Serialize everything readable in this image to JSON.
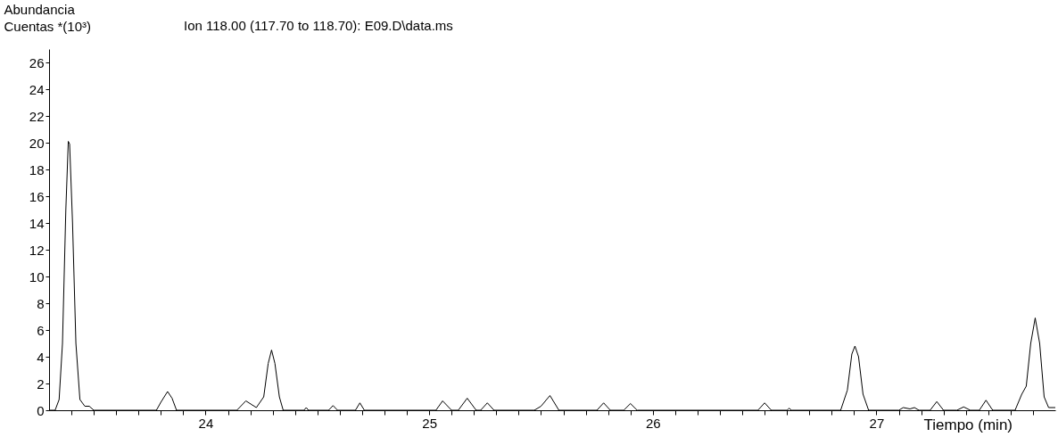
{
  "chart_data": {
    "type": "line",
    "title": "Ion 118.00 (117.70 to 118.70): E09.D\\data.ms",
    "ylabel": "Abundancia\nCuentas *(10³)",
    "xlabel": "Tiempo  (min)",
    "x": [
      23.3,
      23.327,
      23.345,
      23.36,
      23.375,
      23.386,
      23.392,
      23.405,
      23.42,
      23.438,
      23.46,
      23.48,
      23.5,
      23.78,
      23.8,
      23.83,
      23.85,
      23.87,
      24.14,
      24.18,
      24.227,
      24.26,
      24.28,
      24.295,
      24.31,
      24.33,
      24.347,
      24.44,
      24.45,
      24.46,
      24.55,
      24.57,
      24.59,
      24.67,
      24.69,
      24.71,
      25.03,
      25.06,
      25.1,
      25.13,
      25.17,
      25.21,
      25.23,
      25.26,
      25.29,
      25.47,
      25.5,
      25.54,
      25.58,
      25.75,
      25.78,
      25.81,
      25.87,
      25.9,
      25.93,
      26.47,
      26.5,
      26.53,
      26.6,
      26.61,
      26.62,
      26.84,
      26.87,
      26.89,
      26.904,
      26.92,
      26.94,
      26.965,
      27.1,
      27.12,
      27.15,
      27.17,
      27.19,
      27.24,
      27.27,
      27.3,
      27.36,
      27.39,
      27.42,
      27.46,
      27.49,
      27.52,
      27.62,
      27.65,
      27.67,
      27.69,
      27.71,
      27.73,
      27.75,
      27.77,
      27.8
    ],
    "series": [
      {
        "color": "#000000",
        "values": [
          0,
          0,
          0.8,
          5,
          15,
          20.1,
          19.9,
          14,
          5,
          0.8,
          0.3,
          0.3,
          0,
          0,
          0.6,
          1.4,
          0.9,
          0,
          0,
          0.7,
          0.2,
          1,
          3.5,
          4.5,
          3.5,
          1,
          0,
          0,
          0.2,
          0,
          0,
          0.35,
          0,
          0,
          0.55,
          0,
          0,
          0.7,
          0,
          0,
          0.9,
          0,
          0,
          0.55,
          0,
          0,
          0.3,
          1.1,
          0,
          0,
          0.55,
          0,
          0,
          0.5,
          0,
          0,
          0.55,
          0,
          0,
          0.15,
          0,
          0,
          1.5,
          4.2,
          4.8,
          4,
          1.2,
          0,
          0,
          0.2,
          0.1,
          0.2,
          0,
          0,
          0.65,
          0,
          0,
          0.25,
          0,
          0,
          0.75,
          0,
          0,
          1.2,
          1.8,
          5,
          6.9,
          5,
          1,
          0.2,
          0.2
        ]
      }
    ],
    "xlim": [
      23.3,
      27.8
    ],
    "ylim": [
      0,
      27
    ],
    "xticks": [
      {
        "value": 23.4,
        "label": null
      },
      {
        "value": 23.5,
        "label": null
      },
      {
        "value": 23.6,
        "label": null
      },
      {
        "value": 23.7,
        "label": null
      },
      {
        "value": 23.8,
        "label": null
      },
      {
        "value": 23.9,
        "label": null
      },
      24,
      {
        "value": 24.1,
        "label": null
      },
      {
        "value": 24.2,
        "label": null
      },
      {
        "value": 24.3,
        "label": null
      },
      {
        "value": 24.4,
        "label": null
      },
      {
        "value": 24.5,
        "label": null
      },
      {
        "value": 24.6,
        "label": null
      },
      {
        "value": 24.7,
        "label": null
      },
      {
        "value": 24.8,
        "label": null
      },
      {
        "value": 24.9,
        "label": null
      },
      25,
      {
        "value": 25.1,
        "label": null
      },
      {
        "value": 25.2,
        "label": null
      },
      {
        "value": 25.3,
        "label": null
      },
      {
        "value": 25.4,
        "label": null
      },
      {
        "value": 25.5,
        "label": null
      },
      {
        "value": 25.6,
        "label": null
      },
      {
        "value": 25.7,
        "label": null
      },
      {
        "value": 25.8,
        "label": null
      },
      {
        "value": 25.9,
        "label": null
      },
      26,
      {
        "value": 26.1,
        "label": null
      },
      {
        "value": 26.2,
        "label": null
      },
      {
        "value": 26.3,
        "label": null
      },
      {
        "value": 26.4,
        "label": null
      },
      {
        "value": 26.5,
        "label": null
      },
      {
        "value": 26.6,
        "label": null
      },
      {
        "value": 26.7,
        "label": null
      },
      {
        "value": 26.8,
        "label": null
      },
      {
        "value": 26.9,
        "label": null
      },
      27,
      {
        "value": 27.1,
        "label": null
      },
      {
        "value": 27.2,
        "label": null
      },
      {
        "value": 27.3,
        "label": null
      },
      {
        "value": 27.4,
        "label": null
      },
      {
        "value": 27.5,
        "label": null
      },
      {
        "value": 27.6,
        "label": null
      },
      {
        "value": 27.7,
        "label": null
      }
    ],
    "yticks": [
      0,
      2,
      4,
      6,
      8,
      10,
      12,
      14,
      16,
      18,
      20,
      22,
      24,
      26
    ],
    "grid": false,
    "marker": "none",
    "line_style": "solid"
  }
}
